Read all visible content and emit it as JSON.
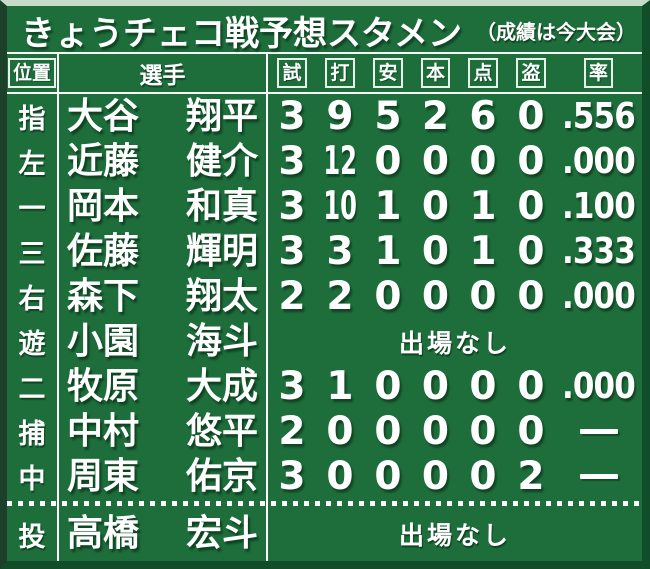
{
  "title": {
    "main": "きょうチェコ戦予想スタメン",
    "note": "（成績は今大会）"
  },
  "columns": {
    "position": "位置",
    "player": "選手",
    "stats": [
      "試",
      "打",
      "安",
      "本",
      "点",
      "盗",
      "率"
    ]
  },
  "labels": {
    "no_appearance": "出場なし"
  },
  "glyphs": {
    "dash": "—"
  },
  "colors": {
    "board_green": "#1e6e3c",
    "line_white": "#ffffff",
    "bevel_dark": "#124d29",
    "bevel_light": "#c6dbca"
  },
  "rows": [
    {
      "position": "指",
      "surname": "大谷",
      "given": "翔平",
      "played": true,
      "stats": [
        "3",
        "9",
        "5",
        "2",
        "6",
        "0",
        ".556"
      ]
    },
    {
      "position": "左",
      "surname": "近藤",
      "given": "健介",
      "played": true,
      "stats": [
        "3",
        "12",
        "0",
        "0",
        "0",
        "0",
        ".000"
      ]
    },
    {
      "position": "一",
      "surname": "岡本",
      "given": "和真",
      "played": true,
      "stats": [
        "3",
        "10",
        "1",
        "0",
        "1",
        "0",
        ".100"
      ]
    },
    {
      "position": "三",
      "surname": "佐藤",
      "given": "輝明",
      "played": true,
      "stats": [
        "3",
        "3",
        "1",
        "0",
        "1",
        "0",
        ".333"
      ]
    },
    {
      "position": "右",
      "surname": "森下",
      "given": "翔太",
      "played": true,
      "stats": [
        "2",
        "2",
        "0",
        "0",
        "0",
        "0",
        ".000"
      ]
    },
    {
      "position": "遊",
      "surname": "小園",
      "given": "海斗",
      "played": false
    },
    {
      "position": "二",
      "surname": "牧原",
      "given": "大成",
      "played": true,
      "stats": [
        "3",
        "1",
        "0",
        "0",
        "0",
        "0",
        ".000"
      ]
    },
    {
      "position": "捕",
      "surname": "中村",
      "given": "悠平",
      "played": true,
      "stats": [
        "2",
        "0",
        "0",
        "0",
        "0",
        "0",
        "—"
      ]
    },
    {
      "position": "中",
      "surname": "周東",
      "given": "佑京",
      "played": true,
      "stats": [
        "3",
        "0",
        "0",
        "0",
        "0",
        "2",
        "—"
      ]
    },
    {
      "position": "投",
      "surname": "高橋",
      "given": "宏斗",
      "played": false,
      "separator_before": true
    }
  ]
}
